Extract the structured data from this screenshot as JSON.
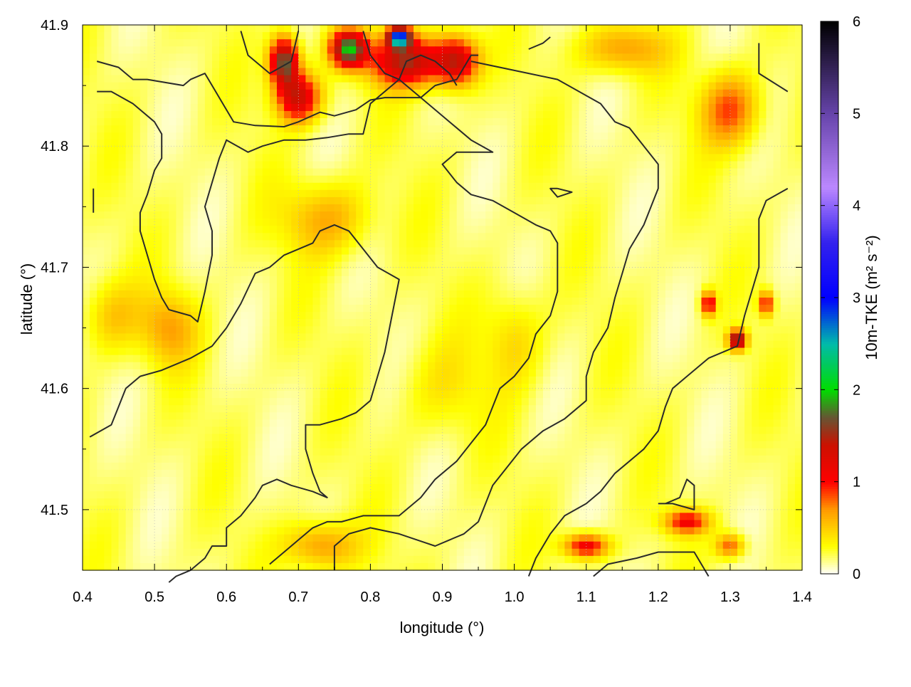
{
  "chart_data": {
    "type": "heatmap",
    "title": "",
    "xlabel": "longitude (°)",
    "ylabel": "latitude (°)",
    "colorbar_label": "10m-TKE (m² s⁻²)",
    "xlim": [
      0.4,
      1.4
    ],
    "ylim": [
      41.45,
      41.9
    ],
    "clim": [
      0,
      6
    ],
    "xticks": [
      0.4,
      0.5,
      0.6,
      0.7,
      0.8,
      0.9,
      1.0,
      1.1,
      1.2,
      1.3,
      1.4
    ],
    "xtick_labels": [
      "0.4",
      "0.5",
      "0.6",
      "0.7",
      "0.8",
      "0.9",
      "1.0",
      "1.1",
      "1.2",
      "1.3",
      "1.4"
    ],
    "yticks": [
      41.5,
      41.6,
      41.7,
      41.8,
      41.9
    ],
    "ytick_labels": [
      "41.5",
      "41.6",
      "41.7",
      "41.8",
      "41.9"
    ],
    "cbar_ticks": [
      0,
      1,
      2,
      3,
      4,
      5,
      6
    ],
    "cbar_tick_labels": [
      "0",
      "1",
      "2",
      "3",
      "4",
      "5",
      "6"
    ],
    "grid": true,
    "colormap": [
      [
        0.0,
        "#ffffff"
      ],
      [
        0.3,
        "#ffff00"
      ],
      [
        0.7,
        "#ff9900"
      ],
      [
        1.0,
        "#ff0000"
      ],
      [
        1.4,
        "#cc1100"
      ],
      [
        1.7,
        "#665533"
      ],
      [
        2.0,
        "#00dd00"
      ],
      [
        2.5,
        "#00bbaa"
      ],
      [
        3.0,
        "#0000ff"
      ],
      [
        3.6,
        "#3322ee"
      ],
      [
        4.2,
        "#bb88ff"
      ],
      [
        5.0,
        "#6644aa"
      ],
      [
        6.0,
        "#000000"
      ]
    ],
    "field_features": [
      {
        "lon": 0.74,
        "lat": 41.74,
        "amp": 0.45,
        "rlon": 0.06,
        "rlat": 0.03
      },
      {
        "lon": 0.52,
        "lat": 41.65,
        "amp": 0.45,
        "rlon": 0.04,
        "rlat": 0.03
      },
      {
        "lon": 0.44,
        "lat": 41.66,
        "amp": 0.35,
        "rlon": 0.04,
        "rlat": 0.03
      },
      {
        "lon": 0.73,
        "lat": 41.47,
        "amp": 0.55,
        "rlon": 0.05,
        "rlat": 0.02
      },
      {
        "lon": 0.9,
        "lat": 41.6,
        "amp": 0.2,
        "rlon": 0.06,
        "rlat": 0.04
      },
      {
        "lon": 1.0,
        "lat": 41.64,
        "amp": 0.3,
        "rlon": 0.04,
        "rlat": 0.04
      },
      {
        "lon": 0.68,
        "lat": 41.87,
        "amp": 1.6,
        "rlon": 0.02,
        "rlat": 0.02
      },
      {
        "lon": 0.7,
        "lat": 41.84,
        "amp": 1.2,
        "rlon": 0.03,
        "rlat": 0.02
      },
      {
        "lon": 0.77,
        "lat": 41.88,
        "amp": 1.7,
        "rlon": 0.025,
        "rlat": 0.015
      },
      {
        "lon": 0.85,
        "lat": 41.87,
        "amp": 1.3,
        "rlon": 0.05,
        "rlat": 0.02
      },
      {
        "lon": 0.84,
        "lat": 41.89,
        "amp": 2.6,
        "rlon": 0.015,
        "rlat": 0.008
      },
      {
        "lon": 0.92,
        "lat": 41.87,
        "amp": 1.2,
        "rlon": 0.03,
        "rlat": 0.02
      },
      {
        "lon": 1.1,
        "lat": 41.47,
        "amp": 1.0,
        "rlon": 0.03,
        "rlat": 0.01
      },
      {
        "lon": 1.24,
        "lat": 41.49,
        "amp": 0.9,
        "rlon": 0.03,
        "rlat": 0.01
      },
      {
        "lon": 1.31,
        "lat": 41.64,
        "amp": 1.6,
        "rlon": 0.012,
        "rlat": 0.008
      },
      {
        "lon": 1.27,
        "lat": 41.67,
        "amp": 1.0,
        "rlon": 0.01,
        "rlat": 0.01
      },
      {
        "lon": 1.35,
        "lat": 41.67,
        "amp": 0.9,
        "rlon": 0.01,
        "rlat": 0.01
      },
      {
        "lon": 1.3,
        "lat": 41.83,
        "amp": 0.7,
        "rlon": 0.04,
        "rlat": 0.03
      },
      {
        "lon": 1.3,
        "lat": 41.47,
        "amp": 0.7,
        "rlon": 0.02,
        "rlat": 0.01
      },
      {
        "lon": 1.15,
        "lat": 41.88,
        "amp": 0.5,
        "rlon": 0.06,
        "rlat": 0.02
      }
    ],
    "contours": [
      [
        [
          0.42,
          41.87
        ],
        [
          0.45,
          41.865
        ],
        [
          0.47,
          41.855
        ],
        [
          0.49,
          41.855
        ],
        [
          0.54,
          41.85
        ],
        [
          0.55,
          41.855
        ],
        [
          0.57,
          41.86
        ],
        [
          0.6,
          41.83
        ],
        [
          0.61,
          41.82
        ],
        [
          0.64,
          41.817
        ],
        [
          0.68,
          41.816
        ],
        [
          0.7,
          41.82
        ],
        [
          0.73,
          41.828
        ],
        [
          0.75,
          41.825
        ],
        [
          0.78,
          41.83
        ],
        [
          0.8,
          41.838
        ],
        [
          0.82,
          41.84
        ],
        [
          0.84,
          41.84
        ],
        [
          0.87,
          41.84
        ],
        [
          0.89,
          41.85
        ],
        [
          0.92,
          41.855
        ],
        [
          0.94,
          41.875
        ],
        [
          0.95,
          41.875
        ]
      ],
      [
        [
          0.62,
          41.895
        ],
        [
          0.63,
          41.875
        ],
        [
          0.66,
          41.86
        ],
        [
          0.69,
          41.87
        ],
        [
          0.7,
          41.895
        ]
      ],
      [
        [
          0.79,
          41.895
        ],
        [
          0.8,
          41.875
        ],
        [
          0.82,
          41.86
        ],
        [
          0.84,
          41.855
        ],
        [
          0.85,
          41.87
        ],
        [
          0.87,
          41.875
        ],
        [
          0.89,
          41.87
        ],
        [
          0.91,
          41.86
        ],
        [
          0.92,
          41.85
        ]
      ],
      [
        [
          0.42,
          41.845
        ],
        [
          0.44,
          41.845
        ],
        [
          0.47,
          41.835
        ],
        [
          0.5,
          41.82
        ],
        [
          0.51,
          41.81
        ],
        [
          0.51,
          41.79
        ],
        [
          0.5,
          41.78
        ],
        [
          0.49,
          41.76
        ],
        [
          0.48,
          41.745
        ],
        [
          0.48,
          41.73
        ],
        [
          0.49,
          41.71
        ],
        [
          0.5,
          41.69
        ],
        [
          0.51,
          41.675
        ],
        [
          0.52,
          41.665
        ],
        [
          0.55,
          41.66
        ],
        [
          0.56,
          41.655
        ],
        [
          0.57,
          41.68
        ],
        [
          0.58,
          41.71
        ],
        [
          0.58,
          41.73
        ],
        [
          0.57,
          41.75
        ],
        [
          0.58,
          41.77
        ],
        [
          0.59,
          41.79
        ],
        [
          0.6,
          41.805
        ],
        [
          0.63,
          41.795
        ],
        [
          0.65,
          41.8
        ],
        [
          0.68,
          41.805
        ],
        [
          0.71,
          41.805
        ],
        [
          0.74,
          41.807
        ],
        [
          0.77,
          41.81
        ],
        [
          0.79,
          41.81
        ],
        [
          0.8,
          41.835
        ],
        [
          0.84,
          41.855
        ],
        [
          0.88,
          41.835
        ],
        [
          0.92,
          41.815
        ],
        [
          0.94,
          41.805
        ],
        [
          0.97,
          41.795
        ],
        [
          0.95,
          41.795
        ],
        [
          0.92,
          41.795
        ],
        [
          0.9,
          41.785
        ],
        [
          0.92,
          41.77
        ],
        [
          0.94,
          41.76
        ],
        [
          0.97,
          41.755
        ],
        [
          1.0,
          41.745
        ],
        [
          1.03,
          41.735
        ],
        [
          1.05,
          41.73
        ],
        [
          1.06,
          41.72
        ],
        [
          1.06,
          41.705
        ],
        [
          1.06,
          41.68
        ],
        [
          1.05,
          41.66
        ],
        [
          1.03,
          41.645
        ],
        [
          1.02,
          41.625
        ],
        [
          1.0,
          41.61
        ],
        [
          0.98,
          41.6
        ],
        [
          0.97,
          41.585
        ],
        [
          0.96,
          41.57
        ],
        [
          0.94,
          41.555
        ],
        [
          0.92,
          41.54
        ],
        [
          0.89,
          41.525
        ],
        [
          0.87,
          41.51
        ],
        [
          0.84,
          41.495
        ],
        [
          0.82,
          41.495
        ],
        [
          0.79,
          41.495
        ],
        [
          0.76,
          41.49
        ],
        [
          0.74,
          41.49
        ],
        [
          0.72,
          41.485
        ],
        [
          0.7,
          41.475
        ],
        [
          0.68,
          41.465
        ],
        [
          0.67,
          41.46
        ],
        [
          0.66,
          41.455
        ]
      ],
      [
        [
          0.41,
          41.56
        ],
        [
          0.44,
          41.57
        ],
        [
          0.45,
          41.585
        ],
        [
          0.46,
          41.6
        ],
        [
          0.48,
          41.61
        ],
        [
          0.51,
          41.615
        ],
        [
          0.55,
          41.625
        ],
        [
          0.58,
          41.635
        ],
        [
          0.6,
          41.65
        ],
        [
          0.62,
          41.67
        ],
        [
          0.64,
          41.695
        ],
        [
          0.66,
          41.7
        ],
        [
          0.68,
          41.71
        ],
        [
          0.72,
          41.72
        ],
        [
          0.73,
          41.73
        ],
        [
          0.75,
          41.735
        ],
        [
          0.77,
          41.73
        ],
        [
          0.79,
          41.715
        ],
        [
          0.81,
          41.7
        ],
        [
          0.84,
          41.69
        ],
        [
          0.83,
          41.66
        ],
        [
          0.82,
          41.63
        ],
        [
          0.81,
          41.61
        ],
        [
          0.8,
          41.59
        ],
        [
          0.78,
          41.58
        ],
        [
          0.76,
          41.575
        ],
        [
          0.73,
          41.57
        ],
        [
          0.71,
          41.57
        ],
        [
          0.71,
          41.55
        ],
        [
          0.72,
          41.53
        ],
        [
          0.73,
          41.515
        ],
        [
          0.74,
          41.51
        ],
        [
          0.72,
          41.515
        ],
        [
          0.69,
          41.52
        ],
        [
          0.67,
          41.525
        ],
        [
          0.65,
          41.52
        ],
        [
          0.64,
          41.51
        ],
        [
          0.62,
          41.495
        ],
        [
          0.6,
          41.485
        ],
        [
          0.6,
          41.47
        ],
        [
          0.58,
          41.47
        ],
        [
          0.57,
          41.46
        ],
        [
          0.55,
          41.45
        ],
        [
          0.53,
          41.445
        ],
        [
          0.52,
          41.44
        ]
      ],
      [
        [
          0.75,
          41.45
        ],
        [
          0.75,
          41.47
        ],
        [
          0.77,
          41.48
        ],
        [
          0.8,
          41.485
        ],
        [
          0.84,
          41.48
        ],
        [
          0.89,
          41.47
        ],
        [
          0.91,
          41.475
        ],
        [
          0.93,
          41.48
        ],
        [
          0.95,
          41.49
        ],
        [
          0.96,
          41.505
        ],
        [
          0.97,
          41.52
        ],
        [
          0.99,
          41.535
        ],
        [
          1.01,
          41.55
        ],
        [
          1.04,
          41.565
        ],
        [
          1.07,
          41.575
        ],
        [
          1.1,
          41.59
        ],
        [
          1.1,
          41.61
        ],
        [
          1.11,
          41.63
        ],
        [
          1.13,
          41.65
        ],
        [
          1.14,
          41.675
        ],
        [
          1.15,
          41.695
        ],
        [
          1.16,
          41.715
        ],
        [
          1.18,
          41.735
        ],
        [
          1.19,
          41.75
        ],
        [
          1.2,
          41.765
        ],
        [
          1.2,
          41.785
        ],
        [
          1.18,
          41.8
        ],
        [
          1.16,
          41.815
        ],
        [
          1.14,
          41.82
        ],
        [
          1.12,
          41.835
        ],
        [
          1.09,
          41.845
        ],
        [
          1.06,
          41.855
        ],
        [
          1.02,
          41.86
        ],
        [
          0.98,
          41.865
        ],
        [
          0.94,
          41.87
        ]
      ],
      [
        [
          1.02,
          41.445
        ],
        [
          1.03,
          41.46
        ],
        [
          1.05,
          41.48
        ],
        [
          1.07,
          41.495
        ],
        [
          1.1,
          41.505
        ],
        [
          1.12,
          41.515
        ],
        [
          1.14,
          41.53
        ],
        [
          1.16,
          41.54
        ],
        [
          1.18,
          41.55
        ],
        [
          1.2,
          41.565
        ],
        [
          1.21,
          41.585
        ],
        [
          1.22,
          41.6
        ],
        [
          1.24,
          41.61
        ],
        [
          1.27,
          41.625
        ],
        [
          1.29,
          41.63
        ],
        [
          1.31,
          41.635
        ],
        [
          1.32,
          41.66
        ],
        [
          1.33,
          41.68
        ],
        [
          1.34,
          41.7
        ],
        [
          1.34,
          41.72
        ],
        [
          1.34,
          41.74
        ],
        [
          1.35,
          41.755
        ],
        [
          1.38,
          41.765
        ]
      ],
      [
        [
          1.11,
          41.445
        ],
        [
          1.13,
          41.455
        ],
        [
          1.17,
          41.46
        ],
        [
          1.2,
          41.465
        ],
        [
          1.25,
          41.465
        ],
        [
          1.27,
          41.445
        ]
      ],
      [
        [
          1.2,
          41.505
        ],
        [
          1.22,
          41.505
        ],
        [
          1.25,
          41.5
        ],
        [
          1.25,
          41.52
        ],
        [
          1.24,
          41.525
        ],
        [
          1.23,
          41.51
        ],
        [
          1.21,
          41.505
        ]
      ],
      [
        [
          1.06,
          41.765
        ],
        [
          1.08,
          41.762
        ],
        [
          1.06,
          41.758
        ],
        [
          1.05,
          41.765
        ],
        [
          1.06,
          41.765
        ]
      ],
      [
        [
          0.415,
          41.765
        ],
        [
          0.415,
          41.745
        ]
      ],
      [
        [
          1.34,
          41.885
        ],
        [
          1.34,
          41.86
        ],
        [
          1.38,
          41.845
        ]
      ],
      [
        [
          1.02,
          41.88
        ],
        [
          1.04,
          41.885
        ],
        [
          1.05,
          41.89
        ]
      ]
    ]
  }
}
